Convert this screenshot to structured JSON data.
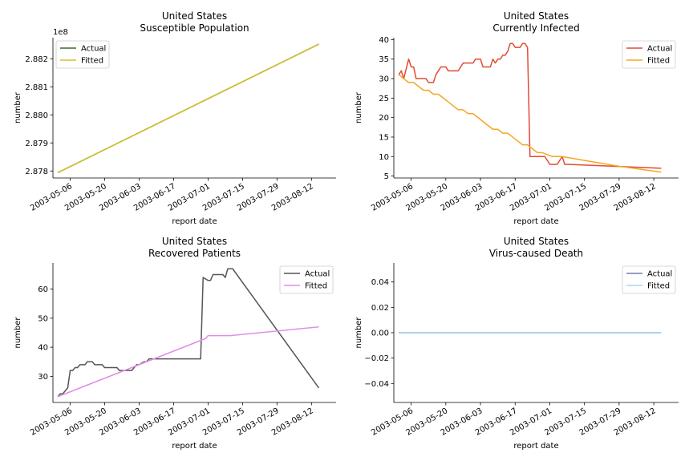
{
  "chart_data": [
    {
      "type": "line",
      "title": "United States",
      "subtitle": "Susceptible Population",
      "xlabel": "report date",
      "ylabel": "number",
      "offset_label": "1e8",
      "ylim": [
        2.87775,
        2.88275
      ],
      "yticks": [
        2.878,
        2.879,
        2.88,
        2.881,
        2.882
      ],
      "ytick_labels": [
        "2.878",
        "2.879",
        "2.880",
        "2.881",
        "2.882"
      ],
      "xlim": [
        "2003-04-29",
        "2003-08-22"
      ],
      "xticks": [
        "2003-05-06",
        "2003-05-20",
        "2003-06-03",
        "2003-06-17",
        "2003-07-01",
        "2003-07-15",
        "2003-07-29",
        "2003-08-12"
      ],
      "legend": "top-left",
      "series": [
        {
          "name": "Actual",
          "color": "#3d6b2a",
          "x": [
            "2003-05-01",
            "2003-08-15"
          ],
          "y": [
            2.87794,
            2.88252
          ]
        },
        {
          "name": "Fitted",
          "color": "#d4c02a",
          "x": [
            "2003-05-01",
            "2003-08-15"
          ],
          "y": [
            2.87794,
            2.88252
          ]
        }
      ]
    },
    {
      "type": "line",
      "title": "United States",
      "subtitle": "Currently Infected",
      "xlabel": "report date",
      "ylabel": "number",
      "ylim": [
        4.5,
        40.5
      ],
      "yticks": [
        5,
        10,
        15,
        20,
        25,
        30,
        35,
        40
      ],
      "ytick_labels": [
        "5",
        "10",
        "15",
        "20",
        "25",
        "30",
        "35",
        "40"
      ],
      "xlim": [
        "2003-04-29",
        "2003-08-22"
      ],
      "xticks": [
        "2003-05-06",
        "2003-05-20",
        "2003-06-03",
        "2003-06-17",
        "2003-07-01",
        "2003-07-15",
        "2003-07-29",
        "2003-08-12"
      ],
      "legend": "top-right",
      "series": [
        {
          "name": "Actual",
          "color": "#e24a33",
          "x": [
            "2003-05-01",
            "2003-05-02",
            "2003-05-03",
            "2003-05-05",
            "2003-05-06",
            "2003-05-07",
            "2003-05-08",
            "2003-05-09",
            "2003-05-12",
            "2003-05-13",
            "2003-05-15",
            "2003-05-16",
            "2003-05-17",
            "2003-05-18",
            "2003-05-20",
            "2003-05-21",
            "2003-05-22",
            "2003-05-25",
            "2003-05-27",
            "2003-05-28",
            "2003-05-31",
            "2003-06-01",
            "2003-06-03",
            "2003-06-04",
            "2003-06-07",
            "2003-06-08",
            "2003-06-09",
            "2003-06-10",
            "2003-06-11",
            "2003-06-12",
            "2003-06-13",
            "2003-06-14",
            "2003-06-15",
            "2003-06-16",
            "2003-06-17",
            "2003-06-18",
            "2003-06-19",
            "2003-06-20",
            "2003-06-21",
            "2003-06-22",
            "2003-06-23",
            "2003-06-24",
            "2003-06-25",
            "2003-06-26",
            "2003-06-27",
            "2003-06-28",
            "2003-06-29",
            "2003-07-01",
            "2003-07-02",
            "2003-07-03",
            "2003-07-04",
            "2003-07-06",
            "2003-07-07",
            "2003-07-08",
            "2003-08-15"
          ],
          "y": [
            31,
            32,
            30,
            35,
            33,
            33,
            30,
            30,
            30,
            29,
            29,
            31,
            32,
            33,
            33,
            32,
            32,
            32,
            34,
            34,
            34,
            35,
            35,
            33,
            33,
            35,
            34,
            35,
            35,
            36,
            36,
            37,
            39,
            39,
            38,
            38,
            38,
            39,
            39,
            38,
            10,
            10,
            10,
            10,
            10,
            10,
            10,
            8,
            8,
            8,
            8,
            10,
            8,
            8,
            7
          ]
        },
        {
          "name": "Fitted",
          "color": "#f5a623",
          "x": [
            "2003-05-01",
            "2003-05-03",
            "2003-05-05",
            "2003-05-07",
            "2003-05-09",
            "2003-05-11",
            "2003-05-13",
            "2003-05-15",
            "2003-05-17",
            "2003-05-19",
            "2003-05-21",
            "2003-05-23",
            "2003-05-25",
            "2003-05-27",
            "2003-05-29",
            "2003-05-31",
            "2003-06-02",
            "2003-06-04",
            "2003-06-06",
            "2003-06-08",
            "2003-06-10",
            "2003-06-12",
            "2003-06-14",
            "2003-06-16",
            "2003-06-18",
            "2003-06-20",
            "2003-06-22",
            "2003-06-24",
            "2003-06-26",
            "2003-06-28",
            "2003-07-02",
            "2003-07-06",
            "2003-07-15",
            "2003-07-29",
            "2003-08-15"
          ],
          "y": [
            31,
            30,
            29,
            29,
            28,
            27,
            27,
            26,
            26,
            25,
            24,
            23,
            22,
            22,
            21,
            21,
            20,
            19,
            18,
            17,
            17,
            16,
            16,
            15,
            14,
            13,
            13,
            12,
            11,
            11,
            10,
            10,
            9,
            7.5,
            6
          ]
        }
      ]
    },
    {
      "type": "line",
      "title": "United States",
      "subtitle": "Recovered Patients",
      "xlabel": "report date",
      "ylabel": "number",
      "ylim": [
        21,
        69
      ],
      "yticks": [
        30,
        40,
        50,
        60
      ],
      "ytick_labels": [
        "30",
        "40",
        "50",
        "60"
      ],
      "xlim": [
        "2003-04-29",
        "2003-08-22"
      ],
      "xticks": [
        "2003-05-06",
        "2003-05-20",
        "2003-06-03",
        "2003-06-17",
        "2003-07-01",
        "2003-07-15",
        "2003-07-29",
        "2003-08-12"
      ],
      "legend": "top-right",
      "series": [
        {
          "name": "Actual",
          "color": "#555555",
          "x": [
            "2003-05-01",
            "2003-05-02",
            "2003-05-03",
            "2003-05-05",
            "2003-05-06",
            "2003-05-07",
            "2003-05-08",
            "2003-05-09",
            "2003-05-10",
            "2003-05-12",
            "2003-05-13",
            "2003-05-15",
            "2003-05-16",
            "2003-05-19",
            "2003-05-20",
            "2003-05-25",
            "2003-05-26",
            "2003-05-31",
            "2003-06-01",
            "2003-06-02",
            "2003-06-03",
            "2003-06-05",
            "2003-06-06",
            "2003-06-07",
            "2003-06-09",
            "2003-06-28",
            "2003-06-29",
            "2003-06-30",
            "2003-07-01",
            "2003-07-02",
            "2003-07-03",
            "2003-07-07",
            "2003-07-08",
            "2003-07-09",
            "2003-07-11",
            "2003-08-15"
          ],
          "y": [
            23,
            24,
            24,
            26,
            32,
            32,
            33,
            33,
            34,
            34,
            35,
            35,
            34,
            34,
            33,
            33,
            32,
            32,
            33,
            34,
            34,
            35,
            35,
            36,
            36,
            36,
            64,
            63.5,
            63,
            63,
            65,
            65,
            64,
            67,
            67,
            26
          ]
        },
        {
          "name": "Fitted",
          "color": "#e08ee8",
          "x": [
            "2003-05-01",
            "2003-05-04",
            "2003-05-07",
            "2003-05-10",
            "2003-05-13",
            "2003-05-16",
            "2003-05-19",
            "2003-05-22",
            "2003-05-25",
            "2003-05-28",
            "2003-05-31",
            "2003-06-03",
            "2003-06-06",
            "2003-06-09",
            "2003-06-12",
            "2003-06-15",
            "2003-06-18",
            "2003-06-21",
            "2003-06-24",
            "2003-06-27",
            "2003-06-30",
            "2003-07-01",
            "2003-07-10",
            "2003-08-15"
          ],
          "y": [
            23,
            24,
            25,
            26,
            27,
            28,
            29,
            30,
            31,
            32,
            33,
            34,
            35,
            36,
            37,
            38,
            39,
            40,
            41,
            42,
            43,
            44,
            44,
            47
          ]
        }
      ]
    },
    {
      "type": "line",
      "title": "United States",
      "subtitle": "Virus-caused Death",
      "xlabel": "report date",
      "ylabel": "number",
      "ylim": [
        -0.055,
        0.055
      ],
      "yticks": [
        -0.04,
        -0.02,
        0.0,
        0.02,
        0.04
      ],
      "ytick_labels": [
        "−0.04",
        "−0.02",
        "0.00",
        "0.02",
        "0.04"
      ],
      "xlim": [
        "2003-04-29",
        "2003-08-22"
      ],
      "xticks": [
        "2003-05-06",
        "2003-05-20",
        "2003-06-03",
        "2003-06-17",
        "2003-07-01",
        "2003-07-15",
        "2003-07-29",
        "2003-08-12"
      ],
      "legend": "top-right",
      "series": [
        {
          "name": "Actual",
          "color": "#6f7fb5",
          "x": [
            "2003-05-01",
            "2003-08-15"
          ],
          "y": [
            0,
            0
          ]
        },
        {
          "name": "Fitted",
          "color": "#a8d8ea",
          "x": [
            "2003-05-01",
            "2003-08-15"
          ],
          "y": [
            0,
            0
          ]
        }
      ]
    }
  ]
}
